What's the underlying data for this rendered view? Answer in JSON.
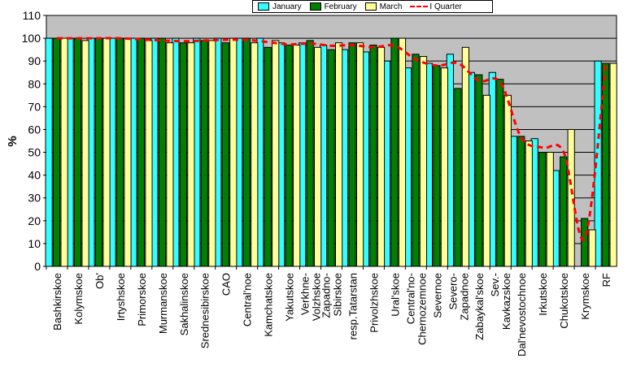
{
  "chart_data": {
    "type": "bar",
    "title": "",
    "xlabel": "",
    "ylabel": "%",
    "ylim": [
      0,
      110
    ],
    "yticks": [
      0,
      10,
      20,
      30,
      40,
      50,
      60,
      70,
      80,
      90,
      100,
      110
    ],
    "grid": true,
    "legend_position": "top",
    "colors": {
      "plot_background": "#c0c0c0",
      "January": "#33ffff",
      "February": "#008000",
      "March": "#ffff99",
      "I Quarter": "#ff0000"
    },
    "categories": [
      "Bashkirskoe",
      "Kolymskoe",
      "Ob'",
      "Irtyshskoe",
      "Primorskoe",
      "Murmanskoe",
      "Sakhalinskoe",
      "Srednesibirskoe",
      "CAO",
      "Central'noe",
      "Kamchatskoe",
      "Yakutskoe",
      "Verkhne-Volzhskoe",
      "Zapadno-Sibirskoe",
      "resp.Tatarstan",
      "Privolzhskoe",
      "Ural'skoe",
      "Central'no-Chernozemnoe",
      "Severnoe",
      "Severo-Zapadnoe",
      "Zabaykal'skoe",
      "Sev.-Kavkazskoe",
      "Dal'nevostochnoe",
      "Irkutskoe",
      "Chukotskoe",
      "Krymskoe",
      "RF"
    ],
    "tick_labels": [
      [
        "Bashkirskoe"
      ],
      [
        "Kolymskoe"
      ],
      [
        "Ob'"
      ],
      [
        "Irtyshskoe"
      ],
      [
        "Primorskoe"
      ],
      [
        "Murmanskoe"
      ],
      [
        "Sakhalinskoe"
      ],
      [
        "Srednesibirskoe"
      ],
      [
        "CAO"
      ],
      [
        "Central'noe"
      ],
      [
        "Kamchatskoe"
      ],
      [
        "Yakutskoe"
      ],
      [
        "Verkhne-",
        "Volzhskoe"
      ],
      [
        "Zapadno-",
        "Sibirskoe"
      ],
      [
        "resp.Tatarstan"
      ],
      [
        "Privolzhskoe"
      ],
      [
        "Ural'skoe"
      ],
      [
        "Central'no-",
        "Chernozemnoe"
      ],
      [
        "Severnoe"
      ],
      [
        "Severo-",
        "Zapadnoe"
      ],
      [
        "Zabaykal'skoe"
      ],
      [
        "Sev.-",
        "Kavkazskoe"
      ],
      [
        "Dal'nevostochnoe"
      ],
      [
        "Irkutskoe"
      ],
      [
        "Chukotskoe"
      ],
      [
        "Krymskoe"
      ],
      [
        "RF"
      ]
    ],
    "series": [
      {
        "name": "January",
        "type": "bar",
        "values": [
          100,
          100,
          100,
          100,
          100,
          100,
          100,
          100,
          100,
          100,
          100,
          98,
          98,
          97,
          95,
          94,
          90,
          87,
          89,
          93,
          85,
          85,
          57,
          56,
          42,
          0,
          90
        ]
      },
      {
        "name": "February",
        "type": "bar",
        "values": [
          100,
          100,
          100,
          100,
          100,
          100,
          98,
          99,
          98,
          100,
          96,
          97,
          99,
          95,
          98,
          97,
          100,
          93,
          88,
          78,
          84,
          82,
          57,
          50,
          48,
          21,
          89
        ]
      },
      {
        "name": "March",
        "type": "bar",
        "values": [
          100,
          99,
          100,
          100,
          99,
          98,
          98,
          99,
          100,
          98,
          99,
          97,
          96,
          98,
          98,
          96,
          100,
          92,
          87,
          96,
          75,
          75,
          55,
          50,
          60,
          16,
          89
        ]
      },
      {
        "name": "I Quarter",
        "type": "line",
        "values": [
          100,
          100,
          100,
          100,
          99.5,
          99,
          98.7,
          99,
          99.3,
          99.3,
          98.3,
          97.3,
          97.7,
          96.7,
          97,
          96,
          96.7,
          90.7,
          88,
          89,
          81.3,
          80.7,
          56.3,
          52,
          50,
          12.3,
          89.3
        ]
      }
    ]
  }
}
